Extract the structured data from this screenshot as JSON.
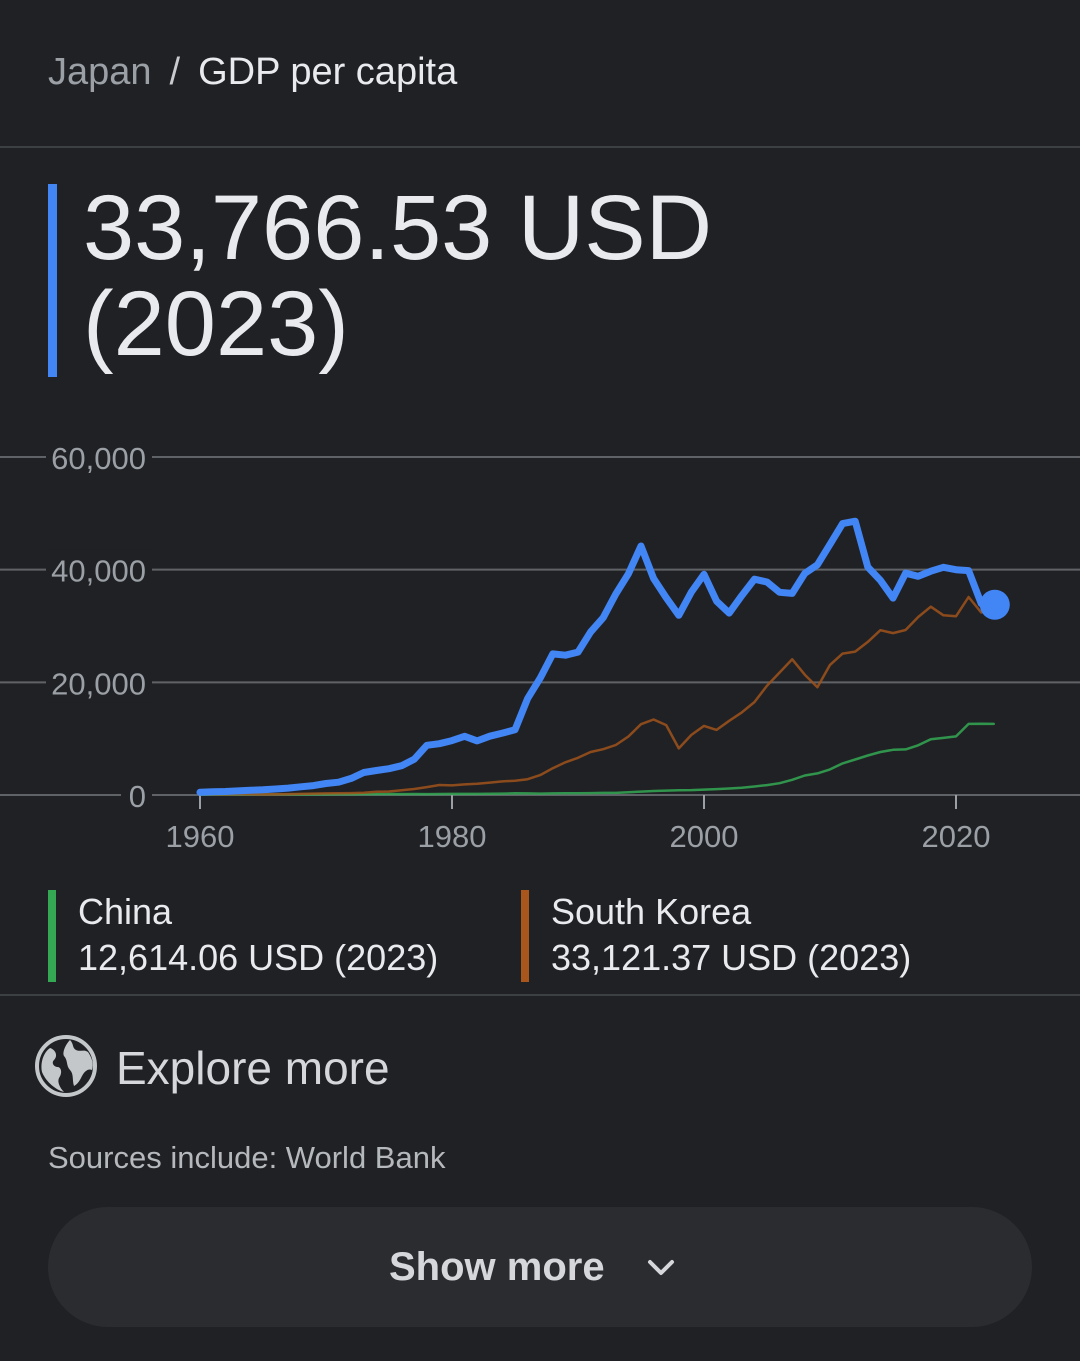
{
  "breadcrumb": {
    "parent": "Japan",
    "separator": "/",
    "current": "GDP per capita"
  },
  "headline": {
    "value": "33,766.53 USD",
    "year": "(2023)",
    "accent_color": "#4285f4"
  },
  "chart_data": {
    "type": "line",
    "ylim": [
      0,
      60000
    ],
    "xlim": [
      1960,
      2030
    ],
    "yticks": [
      0,
      20000,
      40000,
      60000
    ],
    "ytick_labels": [
      "0",
      "20,000",
      "40,000",
      "60,000"
    ],
    "xticks": [
      1960,
      1980,
      2000,
      2020
    ],
    "xtick_labels": [
      "1960",
      "1980",
      "2000",
      "2020"
    ],
    "grid": true,
    "series": [
      {
        "name": "Japan",
        "color": "#4285f4",
        "x": [
          1960,
          1961,
          1962,
          1963,
          1964,
          1965,
          1966,
          1967,
          1968,
          1969,
          1970,
          1971,
          1972,
          1973,
          1974,
          1975,
          1976,
          1977,
          1978,
          1979,
          1980,
          1981,
          1982,
          1983,
          1984,
          1985,
          1986,
          1987,
          1988,
          1989,
          1990,
          1991,
          1992,
          1993,
          1994,
          1995,
          1996,
          1997,
          1998,
          1999,
          2000,
          2001,
          2002,
          2003,
          2004,
          2005,
          2006,
          2007,
          2008,
          2009,
          2010,
          2011,
          2012,
          2013,
          2014,
          2015,
          2016,
          2017,
          2018,
          2019,
          2020,
          2021,
          2022,
          2023
        ],
        "values": [
          480,
          560,
          630,
          720,
          840,
          920,
          1060,
          1230,
          1450,
          1670,
          2040,
          2270,
          2950,
          3990,
          4350,
          4670,
          5200,
          6330,
          8820,
          9100,
          9660,
          10420,
          9610,
          10430,
          10980,
          11580,
          17110,
          20750,
          25050,
          24820,
          25370,
          28930,
          31470,
          35680,
          39270,
          44200,
          38440,
          35020,
          31900,
          36030,
          39170,
          34410,
          32290,
          35390,
          38300,
          37810,
          35990,
          35780,
          39340,
          40860,
          44510,
          48170,
          48600,
          40450,
          38110,
          34960,
          39380,
          38830,
          39730,
          40420,
          39990,
          39830,
          34000,
          33770
        ]
      },
      {
        "name": "South Korea",
        "color": "#a0521b",
        "x": [
          1960,
          1961,
          1962,
          1963,
          1964,
          1965,
          1966,
          1967,
          1968,
          1969,
          1970,
          1971,
          1972,
          1973,
          1974,
          1975,
          1976,
          1977,
          1978,
          1979,
          1980,
          1981,
          1982,
          1983,
          1984,
          1985,
          1986,
          1987,
          1988,
          1989,
          1990,
          1991,
          1992,
          1993,
          1994,
          1995,
          1996,
          1997,
          1998,
          1999,
          2000,
          2001,
          2002,
          2003,
          2004,
          2005,
          2006,
          2007,
          2008,
          2009,
          2010,
          2011,
          2012,
          2013,
          2014,
          2015,
          2016,
          2017,
          2018,
          2019,
          2020,
          2021,
          2022,
          2023
        ],
        "values": [
          160,
          100,
          110,
          140,
          120,
          110,
          130,
          160,
          200,
          240,
          280,
          300,
          330,
          410,
          560,
          620,
          830,
          1060,
          1400,
          1780,
          1710,
          1880,
          1990,
          2200,
          2420,
          2540,
          2800,
          3530,
          4750,
          5810,
          6610,
          7640,
          8130,
          8880,
          10390,
          12560,
          13400,
          12400,
          8280,
          10670,
          12260,
          11560,
          13170,
          14670,
          16500,
          19400,
          21740,
          24090,
          21350,
          19140,
          23090,
          25100,
          25460,
          27180,
          29250,
          28740,
          29290,
          31600,
          33430,
          31900,
          31730,
          35140,
          32400,
          33120
        ]
      },
      {
        "name": "China",
        "color": "#34a853",
        "x": [
          1960,
          1961,
          1962,
          1963,
          1964,
          1965,
          1966,
          1967,
          1968,
          1969,
          1970,
          1971,
          1972,
          1973,
          1974,
          1975,
          1976,
          1977,
          1978,
          1979,
          1980,
          1981,
          1982,
          1983,
          1984,
          1985,
          1986,
          1987,
          1988,
          1989,
          1990,
          1991,
          1992,
          1993,
          1994,
          1995,
          1996,
          1997,
          1998,
          1999,
          2000,
          2001,
          2002,
          2003,
          2004,
          2005,
          2006,
          2007,
          2008,
          2009,
          2010,
          2011,
          2012,
          2013,
          2014,
          2015,
          2016,
          2017,
          2018,
          2019,
          2020,
          2021,
          2022,
          2023
        ],
        "values": [
          90,
          75,
          70,
          74,
          85,
          98,
          104,
          96,
          91,
          100,
          113,
          119,
          132,
          157,
          160,
          178,
          165,
          185,
          156,
          183,
          195,
          197,
          203,
          225,
          250,
          294,
          282,
          252,
          284,
          311,
          318,
          333,
          366,
          377,
          473,
          610,
          709,
          782,
          829,
          873,
          959,
          1053,
          1149,
          1289,
          1509,
          1753,
          2099,
          2694,
          3468,
          3832,
          4550,
          5614,
          6301,
          7020,
          7636,
          8016,
          8094,
          8817,
          9905,
          10144,
          10409,
          12617,
          12663,
          12614
        ]
      }
    ]
  },
  "legend": [
    {
      "name": "China",
      "value": "12,614.06 USD (2023)",
      "color": "#34a853"
    },
    {
      "name": "South Korea",
      "value": "33,121.37 USD (2023)",
      "color": "#a8561c"
    }
  ],
  "explore": {
    "label": "Explore more",
    "icon": "globe-icon"
  },
  "sources": "Sources include: World Bank",
  "show_more": {
    "label": "Show more",
    "icon": "chevron-down-icon"
  }
}
